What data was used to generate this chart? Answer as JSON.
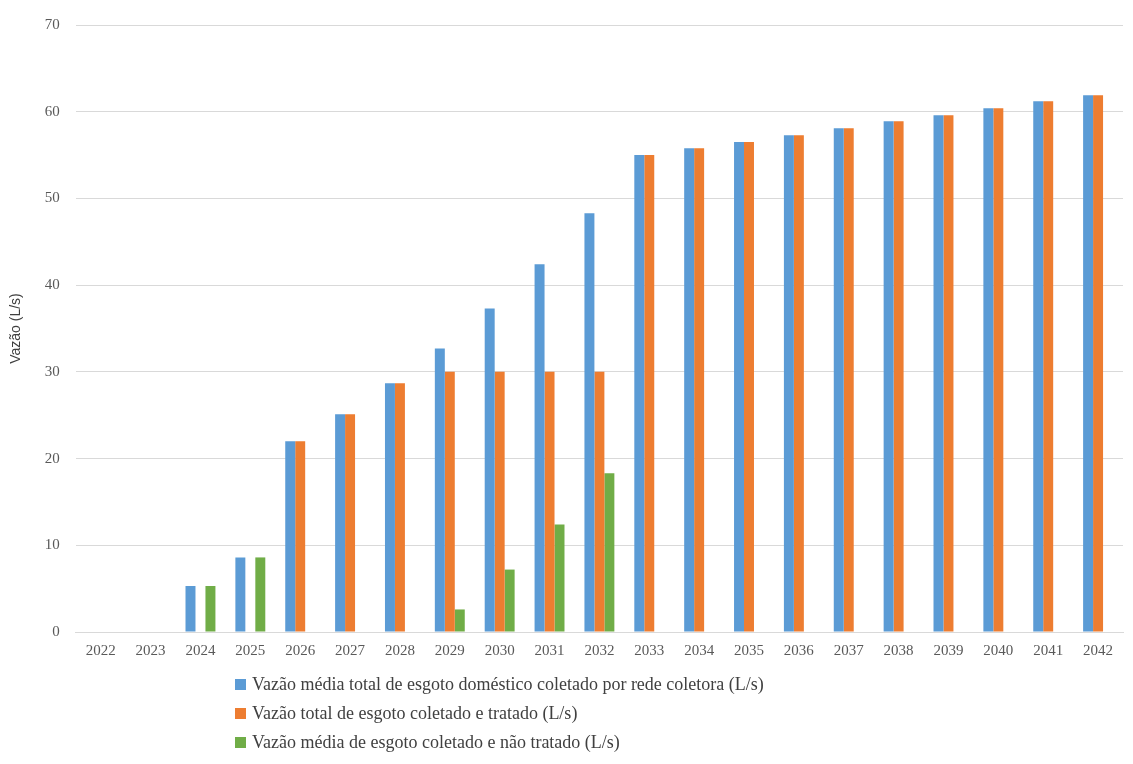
{
  "chart_data": {
    "type": "bar",
    "ylabel": "Vazão (L/s)",
    "categories": [
      "2022",
      "2023",
      "2024",
      "2025",
      "2026",
      "2027",
      "2028",
      "2029",
      "2030",
      "2031",
      "2032",
      "2033",
      "2034",
      "2035",
      "2036",
      "2037",
      "2038",
      "2039",
      "2040",
      "2041",
      "2042"
    ],
    "series": [
      {
        "name": "Vazão média total de esgoto doméstico coletado por rede coletora (L/s)",
        "color": "#5b9bd5",
        "values": [
          0,
          0,
          5.3,
          8.6,
          22.0,
          25.1,
          28.7,
          32.7,
          37.3,
          42.4,
          48.3,
          55.0,
          55.8,
          56.5,
          57.3,
          58.1,
          58.9,
          59.6,
          60.4,
          61.2,
          61.9
        ]
      },
      {
        "name": "Vazão total de esgoto coletado e tratado (L/s)",
        "color": "#ed7d31",
        "values": [
          0,
          0,
          0,
          0,
          22.0,
          25.1,
          28.7,
          30,
          30,
          30,
          30,
          55.0,
          55.8,
          56.5,
          57.3,
          58.1,
          58.9,
          59.6,
          60.4,
          61.2,
          61.9
        ]
      },
      {
        "name": "Vazão média de esgoto coletado e não tratado (L/s)",
        "color": "#70ad47",
        "values": [
          0,
          0,
          5.3,
          8.6,
          0,
          0,
          0,
          2.6,
          7.2,
          12.4,
          18.3,
          0,
          0,
          0,
          0,
          0,
          0,
          0,
          0,
          0,
          0
        ]
      }
    ],
    "ylim": [
      0,
      70
    ],
    "yticks": [
      0,
      10,
      20,
      30,
      40,
      50,
      60,
      70
    ],
    "grid": "y",
    "legend": "bottom"
  }
}
